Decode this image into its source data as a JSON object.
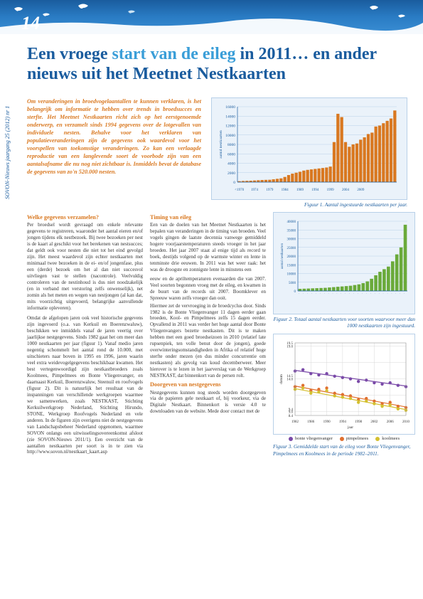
{
  "page_number": "14",
  "side_label": "SOVON-Nieuws jaargang 25 (2012) nr 1",
  "title_part1": "Een vroege ",
  "title_accent": "start van de eileg",
  "title_part2": " in 2011… en ander nieuws uit het Meetnet Nestkaarten",
  "intro": "Om veranderingen in broedvogelaantallen te kunnen verklaren, is het belangrijk om informatie te hebben over trends in broedsucces en sterfte. Het Meetnet Nestkaarten richt zich op het eerstgenoemde onderwerp, en verzamelt sinds 1994 gegevens over de lotgevallen van individuele nesten. Behalve voor het verklaren van populatieveranderingen zijn de gegevens ook waardevol voor het voorspellen van toekomstige veranderingen. Zo kan een verlaagde reproductie van een langlevende soort de voorbode zijn van een aantalsafname die nu nog niet zichtbaar is. Inmiddels bevat de database de gegevens van zo'n 520.000 nesten.",
  "subhead1": "Welke gegevens verzamelen?",
  "body1a": "Per broedsel wordt gevraagd om enkele relevante gegevens te registreren, waaronder het aantal eieren en/of jongen tijdens elk nestbezoek. Bij twee bezoeken per nest is de kaart al geschikt voor het berekenen van nestsucces; dat geldt ook voor nesten die niet tot het eind gevolgd zijn. Het meest waardevol zijn echter nestkaarten met minimaal twee bezoeken in de ei- en/of jongenfase, plus een (derde) bezoek om het al dan niet succesvol uitvliegen vast te stellen (nacontrole). Veelvuldig controleren van de nestinhoud is dus niet noodzakelijk (en in verband met verstoring zelfs onwenselijk), net zomin als het meten en wegen van nestjongen (al kan dat, mits voorzichtig uitgevoerd, belangrijke aanvullende informatie opleveren).",
  "body1b": "Omdat de afgelopen jaren ook veel historische gegevens zijn ingevoerd (o.a. van Kerkuil en Boerenzwaluw), beschikken we inmiddels vanaf de jaren veertig over jaarlijkse nestgegevens. Sinds 1982 gaat het om meer dan 1000 nestkaarten per jaar (figuur 1). Vanaf medio jaren negentig schommelt het aantal rond de 10.000, met uitschieters naar boven in 1995 en 1996, jaren waarin veel extra weidevogelgegevens beschikbaar kwamen. Het best vertegenwoordigd zijn nestkastbroeders zoals Koolmees, Pimpelmees en Bonte Vliegenvanger, en daarnaast Kerkuil, Boerenzwaluw, Steenuil en roofvogels (figuur 2). Dit is natuurlijk het resultaat van de inspanningen van verschillende werkgroepen waarmee we samenwerken, zoals NESTKAST, Stichting Kerkuilwerkgroep Nederland, Stichting Hirundo, STONE, Werkgroep Roofvogels Nederland en vele anderen. In de figuren zijn overigens niet de nestgegevens van Landschapsbeheer Nederland opgenomen, waarmee SOVON onlangs een uitwisselingsovereenkomst afsloot (zie SOVON-Nieuws 2011/1). Een overzicht van de aantallen nestkaarten per soort is in te zien via http://www.sovon.nl/nestkaart_kaart.asp",
  "subhead2": "Timing van eileg",
  "body2a": "Een van de doelen van het Meetnet Nestkaarten is het bepalen van veranderingen in de timing van broeden. Veel vogels gingen de laatste decennia vanwege gemiddeld hogere voorjaarstemperaturen steeds vroeger in het jaar broeden. Het jaar 2007 staat al enige tijd als record te boek, destijds volgend op de warmste winter en lente in tenminste drie eeuwen. In 2011 was het weer raak: het was de droogste en zonnigste lente in minstens een",
  "body2b": "eeuw en de apriltemperaturen evenaarden die van 2007. Veel soorten begonnen vroeg met de eileg, en kwamen in de buurt van de records uit 2007. Boomklever en Spreeuw waren zelfs vroeger dan ooit.",
  "body2c": "Hiermee zet de vervroeging in de broedcyclus door. Sinds 1982 is de Bonte Vliegenvanger 11 dagen eerder gaan broeden, Kool- en Pimpelmees zelfs 15 dagen eerder. Opvallend in 2011 was verder het hoge aantal door Bonte Vliegenvangers bezette nestkasten. Dit is te maken hebben met een goed broedseizoen in 2010 (relatief late rupsenpiek, ten volle benut door de jongen), goede overwinteringsomstandigheden in Afrika of relatief hoge sterfte onder mezen (en dus minder concurrentie om nestkasten) als gevolg van koud decemberweer. Meer hierover is te lezen in het jaarverslag van de Werkgroep NESTKAST, dat binnenkort van de persen rolt.",
  "subhead3": "Doorgeven van nestgegevens",
  "body3": "Nestgegevens kunnen nog steeds worden doorgegeven via de papieren gele nestkaart of, bij voorkeur, via de Digitale Nestkaart. Binnenkort is versie 4.0 te downloaden van de website. Mede door contact met de",
  "chart1": {
    "caption": "Figuur 1. Aantal ingestuurde nestkaarten per jaar.",
    "ylabel": "aantal nestkaarten",
    "ymax": 16000,
    "ytick": 2000,
    "years": [
      "<1970",
      "1974",
      "1979",
      "1984",
      "1989",
      "1994",
      "1999",
      "2004",
      "2009"
    ],
    "values": [
      200,
      250,
      280,
      300,
      350,
      400,
      450,
      480,
      500,
      600,
      700,
      800,
      1100,
      1500,
      1800,
      2000,
      2200,
      2450,
      2600,
      2700,
      2800,
      2900,
      3000,
      3100,
      3300,
      8500,
      14500,
      13800,
      8500,
      7500,
      8000,
      8200,
      9000,
      9500,
      10200,
      10500,
      11800,
      12000,
      12500,
      13000,
      13500,
      15200
    ],
    "bar_color": "#d97820",
    "bg": "#eaf2fa",
    "grid": "#b8d0e8"
  },
  "chart2": {
    "caption": "Figuur 2. Totaal aantal nestkaarten voor soorten waarvoor meer dan 1000 nestkaarten zijn ingestuurd.",
    "ylabel": "aantal nestkaarten",
    "ymax": 40000,
    "ytick": 5000,
    "values": [
      1200,
      1300,
      1400,
      1500,
      1600,
      1700,
      1800,
      2000,
      2200,
      2400,
      2600,
      2800,
      3000,
      3400,
      3800,
      4500,
      5500,
      7000,
      9000,
      11000,
      12500,
      14000,
      17000,
      21000,
      25000,
      38000
    ],
    "bar_color": "#6aaa3a",
    "bg": "#eaf2fa",
    "grid": "#b8d0e8"
  },
  "chart3": {
    "caption": "Figuur 3. Gemiddelde start van de eileg voor Bonte Vliegenvanger, Pimpelmees en Koolmees in de periode 1982–2011.",
    "ylabel": "datum",
    "xlabel": "jaar",
    "xmin": 1982,
    "xmax": 2010,
    "xtick": 4,
    "ymin": 8.4,
    "ymax": 19.5,
    "series": [
      {
        "name": "bonte vliegenvanger",
        "color": "#7a4aa8",
        "points": [
          [
            1982,
            15.2
          ],
          [
            1984,
            15.4
          ],
          [
            1986,
            14.8
          ],
          [
            1988,
            14.6
          ],
          [
            1990,
            14.8
          ],
          [
            1992,
            14.4
          ],
          [
            1994,
            14.2
          ],
          [
            1996,
            14.0
          ],
          [
            1998,
            13.6
          ],
          [
            2000,
            13.8
          ],
          [
            2002,
            13.4
          ],
          [
            2004,
            13.2
          ],
          [
            2006,
            13.4
          ],
          [
            2008,
            13.0
          ],
          [
            2010,
            12.8
          ]
        ],
        "trend": [
          [
            1982,
            15.3
          ],
          [
            2010,
            12.9
          ]
        ]
      },
      {
        "name": "pimpelmees",
        "color": "#e07030",
        "points": [
          [
            1982,
            12.8
          ],
          [
            1984,
            13.0
          ],
          [
            1986,
            12.2
          ],
          [
            1988,
            12.4
          ],
          [
            1990,
            12.6
          ],
          [
            1992,
            11.8
          ],
          [
            1994,
            11.6
          ],
          [
            1996,
            11.4
          ],
          [
            1998,
            10.8
          ],
          [
            2000,
            11.0
          ],
          [
            2002,
            10.6
          ],
          [
            2004,
            10.2
          ],
          [
            2006,
            10.4
          ],
          [
            2008,
            9.8
          ],
          [
            2010,
            9.6
          ]
        ],
        "trend": [
          [
            1982,
            12.9
          ],
          [
            2010,
            9.7
          ]
        ]
      },
      {
        "name": "koolmees",
        "color": "#d4c030",
        "points": [
          [
            1982,
            12.4
          ],
          [
            1984,
            12.6
          ],
          [
            1986,
            11.8
          ],
          [
            1988,
            12.0
          ],
          [
            1990,
            12.2
          ],
          [
            1992,
            11.4
          ],
          [
            1994,
            11.2
          ],
          [
            1996,
            11.0
          ],
          [
            1998,
            10.4
          ],
          [
            2000,
            10.6
          ],
          [
            2002,
            10.2
          ],
          [
            2004,
            9.8
          ],
          [
            2006,
            10.0
          ],
          [
            2008,
            9.4
          ],
          [
            2010,
            9.2
          ]
        ],
        "trend": [
          [
            1982,
            12.5
          ],
          [
            2010,
            9.3
          ]
        ]
      }
    ],
    "bg": "#ffffff",
    "grid": "#d0d0d0"
  }
}
